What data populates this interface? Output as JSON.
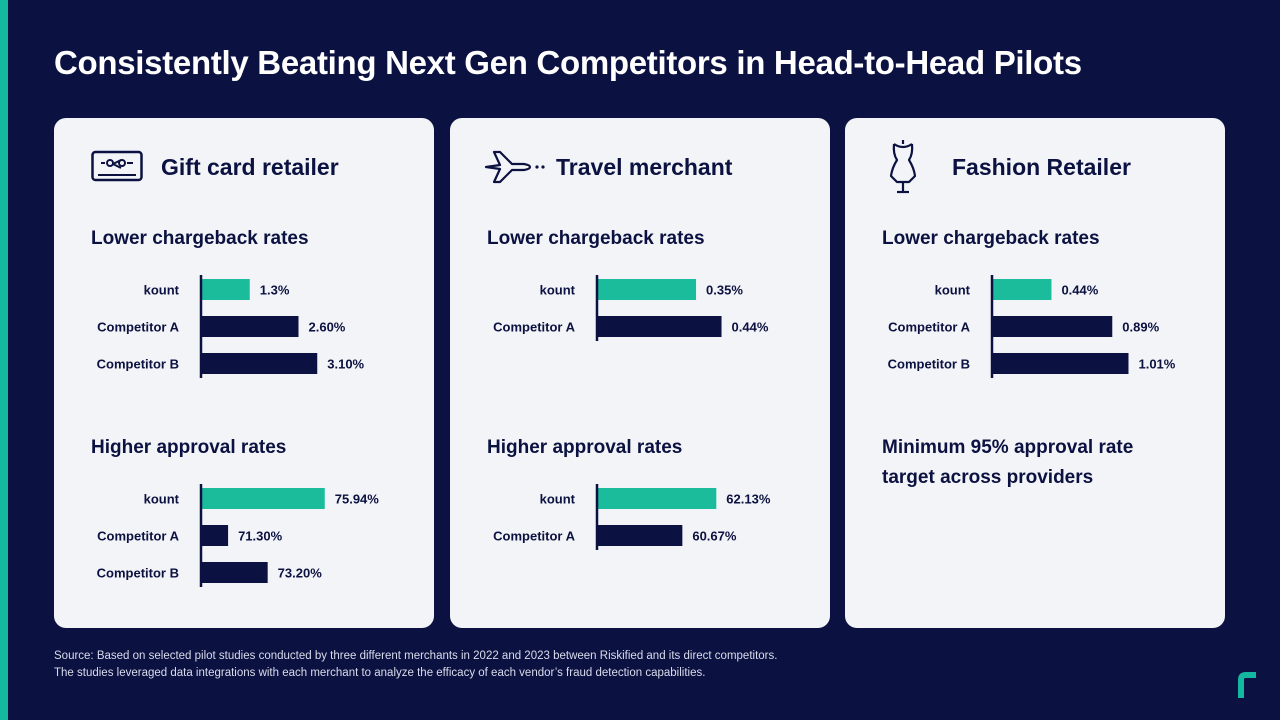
{
  "title": "Consistently Beating Next Gen Competitors in Head-to-Head Pilots",
  "colors": {
    "background": "#0b1140",
    "accent": "#14b8a0",
    "bar_highlight": "#1abc9c",
    "bar_dark": "#0b1140",
    "card": "#f3f4f7"
  },
  "cards": [
    {
      "name": "Gift card retailer",
      "icon": "gift-card-icon"
    },
    {
      "name": "Travel merchant",
      "icon": "airplane-icon"
    },
    {
      "name": "Fashion Retailer",
      "icon": "dress-form-icon",
      "note": "Minimum 95% approval rate target across providers"
    }
  ],
  "chart_data": [
    {
      "card": "Gift card retailer",
      "type": "bar",
      "orientation": "horizontal",
      "title": "Lower chargeback rates",
      "categories": [
        "kount",
        "Competitor A",
        "Competitor B"
      ],
      "values": [
        1.3,
        2.6,
        3.1
      ],
      "labels": [
        "1.3%",
        "2.60%",
        "3.10%"
      ],
      "unit": "%",
      "xlim": [
        0,
        4.0
      ]
    },
    {
      "card": "Gift card retailer",
      "type": "bar",
      "orientation": "horizontal",
      "title": "Higher approval rates",
      "categories": [
        "kount",
        "Competitor A",
        "Competitor B"
      ],
      "values": [
        75.94,
        71.3,
        73.2
      ],
      "labels": [
        "75.94%",
        "71.30%",
        "73.20%"
      ],
      "unit": "%",
      "xlim": [
        70,
        77.2
      ]
    },
    {
      "card": "Travel merchant",
      "type": "bar",
      "orientation": "horizontal",
      "title": "Lower chargeback rates",
      "categories": [
        "kount",
        "Competitor A"
      ],
      "values": [
        0.35,
        0.44
      ],
      "labels": [
        "0.35%",
        "0.44%"
      ],
      "unit": "%",
      "xlim": [
        0,
        0.53
      ]
    },
    {
      "card": "Travel merchant",
      "type": "bar",
      "orientation": "horizontal",
      "title": "Higher approval rates",
      "categories": [
        "kount",
        "Competitor A"
      ],
      "values": [
        62.13,
        60.67
      ],
      "labels": [
        "62.13%",
        "60.67%"
      ],
      "unit": "%",
      "xlim": [
        57,
        63.45
      ]
    },
    {
      "card": "Fashion Retailer",
      "type": "bar",
      "orientation": "horizontal",
      "title": "Lower chargeback rates",
      "categories": [
        "kount",
        "Competitor A",
        "Competitor B"
      ],
      "values": [
        0.44,
        0.89,
        1.01
      ],
      "labels": [
        "0.44%",
        "0.89%",
        "1.01%"
      ],
      "unit": "%",
      "xlim": [
        0,
        1.11
      ]
    }
  ],
  "footer": {
    "line1": "Source: Based on selected pilot studies conducted by three different merchants in 2022 and 2023 between Riskified and its direct competitors.",
    "line2": "The studies leveraged data integrations with each merchant to analyze the efficacy of each vendor’s fraud detection capabilities."
  }
}
